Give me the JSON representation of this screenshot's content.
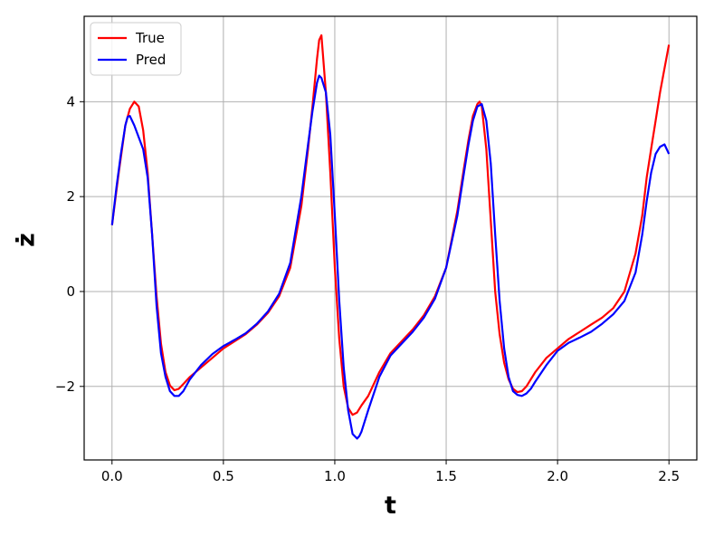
{
  "chart_data": {
    "type": "line",
    "title": "",
    "xlabel": "t",
    "ylabel": "ż",
    "xlim": [
      -0.125,
      2.625
    ],
    "ylim": [
      -3.55,
      5.8
    ],
    "xticks": [
      0.0,
      0.5,
      1.0,
      1.5,
      2.0,
      2.5
    ],
    "xtick_labels": [
      "0.0",
      "0.5",
      "1.0",
      "1.5",
      "2.0",
      "2.5"
    ],
    "yticks": [
      -2,
      0,
      2,
      4
    ],
    "ytick_labels": [
      "−2",
      "0",
      "2",
      "4"
    ],
    "grid": true,
    "legend_position": "top-left",
    "series": [
      {
        "name": "True",
        "color": "#ff0000",
        "x": [
          0.0,
          0.03,
          0.06,
          0.08,
          0.1,
          0.12,
          0.14,
          0.16,
          0.18,
          0.2,
          0.22,
          0.24,
          0.26,
          0.28,
          0.3,
          0.32,
          0.35,
          0.4,
          0.45,
          0.5,
          0.55,
          0.6,
          0.65,
          0.7,
          0.75,
          0.8,
          0.85,
          0.88,
          0.9,
          0.92,
          0.93,
          0.94,
          0.96,
          0.98,
          1.0,
          1.02,
          1.04,
          1.06,
          1.08,
          1.1,
          1.12,
          1.15,
          1.2,
          1.25,
          1.3,
          1.35,
          1.4,
          1.45,
          1.5,
          1.55,
          1.58,
          1.6,
          1.62,
          1.64,
          1.65,
          1.66,
          1.68,
          1.7,
          1.72,
          1.74,
          1.76,
          1.78,
          1.8,
          1.82,
          1.84,
          1.86,
          1.9,
          1.95,
          2.0,
          2.05,
          2.1,
          2.15,
          2.2,
          2.25,
          2.3,
          2.35,
          2.38,
          2.4,
          2.42,
          2.44,
          2.46,
          2.48,
          2.5
        ],
        "y": [
          1.4,
          2.5,
          3.5,
          3.85,
          4.0,
          3.9,
          3.4,
          2.5,
          1.2,
          -0.1,
          -1.1,
          -1.7,
          -1.98,
          -2.08,
          -2.05,
          -1.95,
          -1.8,
          -1.6,
          -1.4,
          -1.2,
          -1.05,
          -0.9,
          -0.7,
          -0.45,
          -0.1,
          0.5,
          1.8,
          3.0,
          3.9,
          4.9,
          5.3,
          5.4,
          4.2,
          2.5,
          0.5,
          -1.0,
          -2.0,
          -2.45,
          -2.6,
          -2.55,
          -2.4,
          -2.2,
          -1.7,
          -1.3,
          -1.05,
          -0.8,
          -0.5,
          -0.1,
          0.5,
          1.7,
          2.6,
          3.2,
          3.7,
          3.95,
          4.0,
          3.9,
          3.0,
          1.5,
          0.0,
          -0.9,
          -1.5,
          -1.85,
          -2.05,
          -2.12,
          -2.1,
          -2.0,
          -1.7,
          -1.4,
          -1.2,
          -1.0,
          -0.85,
          -0.7,
          -0.55,
          -0.35,
          0.0,
          0.8,
          1.6,
          2.4,
          3.0,
          3.6,
          4.2,
          4.7,
          5.2
        ]
      },
      {
        "name": "Pred",
        "color": "#0000ff",
        "x": [
          0.0,
          0.02,
          0.04,
          0.06,
          0.07,
          0.08,
          0.1,
          0.12,
          0.14,
          0.16,
          0.18,
          0.2,
          0.22,
          0.24,
          0.26,
          0.28,
          0.3,
          0.32,
          0.35,
          0.4,
          0.45,
          0.5,
          0.55,
          0.6,
          0.65,
          0.7,
          0.75,
          0.8,
          0.85,
          0.88,
          0.9,
          0.92,
          0.93,
          0.94,
          0.96,
          0.98,
          1.0,
          1.02,
          1.04,
          1.06,
          1.08,
          1.1,
          1.11,
          1.12,
          1.15,
          1.2,
          1.25,
          1.3,
          1.35,
          1.4,
          1.45,
          1.5,
          1.55,
          1.58,
          1.6,
          1.62,
          1.64,
          1.66,
          1.68,
          1.7,
          1.72,
          1.74,
          1.76,
          1.78,
          1.8,
          1.82,
          1.84,
          1.86,
          1.88,
          1.9,
          1.95,
          2.0,
          2.05,
          2.1,
          2.15,
          2.2,
          2.25,
          2.3,
          2.35,
          2.38,
          2.4,
          2.42,
          2.44,
          2.46,
          2.48,
          2.5
        ],
        "y": [
          1.4,
          2.2,
          2.9,
          3.5,
          3.68,
          3.7,
          3.5,
          3.25,
          3.0,
          2.4,
          1.2,
          -0.3,
          -1.3,
          -1.8,
          -2.1,
          -2.2,
          -2.2,
          -2.1,
          -1.85,
          -1.55,
          -1.32,
          -1.15,
          -1.02,
          -0.88,
          -0.68,
          -0.42,
          -0.05,
          0.6,
          2.0,
          3.1,
          3.8,
          4.4,
          4.55,
          4.5,
          4.2,
          3.3,
          1.6,
          -0.2,
          -1.6,
          -2.5,
          -3.0,
          -3.1,
          -3.05,
          -2.95,
          -2.5,
          -1.8,
          -1.35,
          -1.1,
          -0.85,
          -0.55,
          -0.15,
          0.5,
          1.6,
          2.5,
          3.1,
          3.6,
          3.9,
          3.95,
          3.6,
          2.7,
          1.2,
          -0.2,
          -1.2,
          -1.8,
          -2.1,
          -2.18,
          -2.2,
          -2.15,
          -2.05,
          -1.9,
          -1.55,
          -1.25,
          -1.08,
          -0.97,
          -0.85,
          -0.68,
          -0.48,
          -0.2,
          0.4,
          1.2,
          1.9,
          2.5,
          2.9,
          3.05,
          3.1,
          2.9
        ]
      }
    ]
  }
}
